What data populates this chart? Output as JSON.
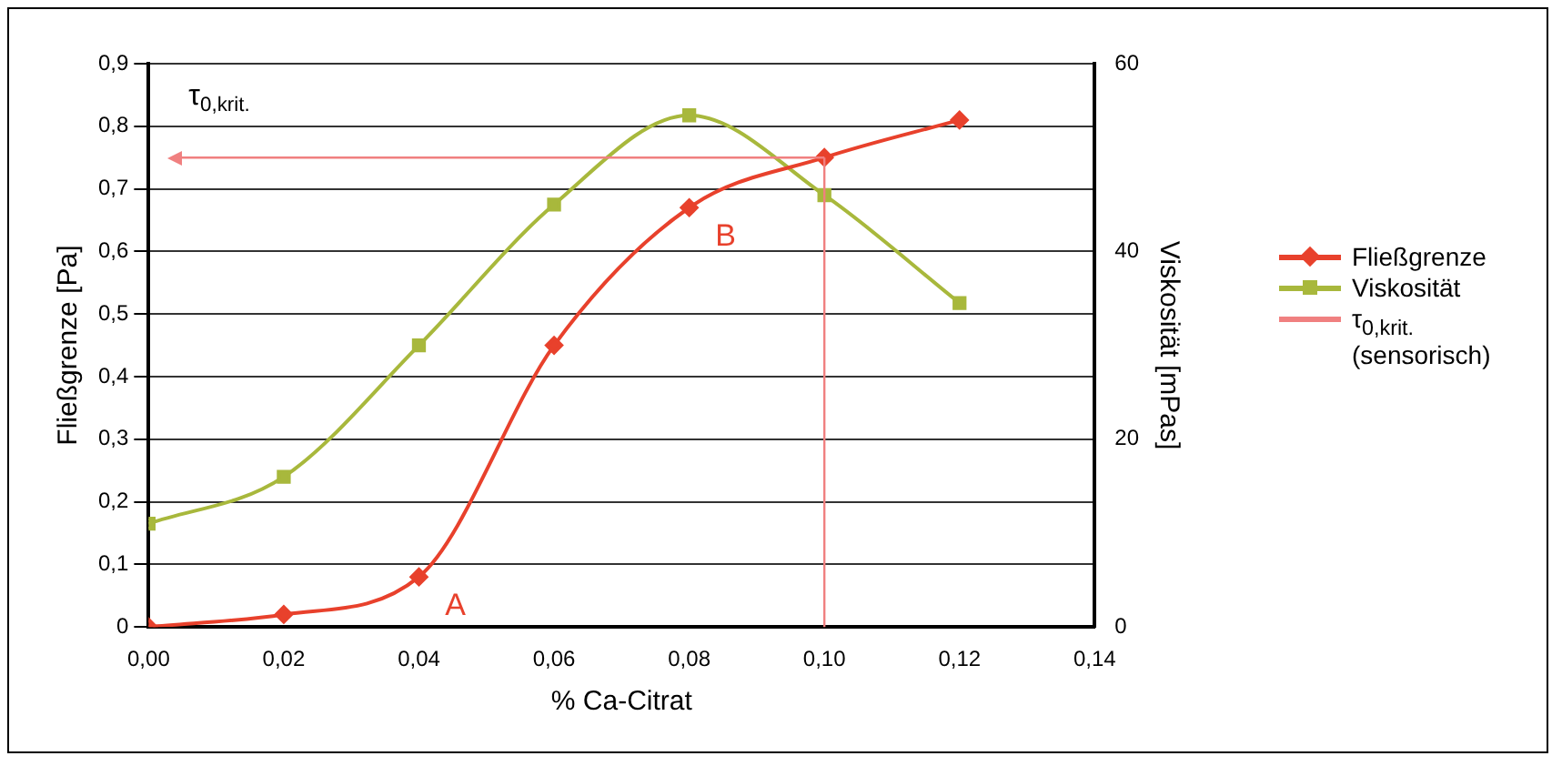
{
  "chart_data": {
    "type": "line",
    "xlabel": "% Ca-Citrat",
    "ylabel": "Fließgrenze [Pa]",
    "y2label": "Viskosität [mPas]",
    "x": [
      0,
      0.02,
      0.04,
      0.06,
      0.08,
      0.1,
      0.12
    ],
    "series": [
      {
        "name": "Fließgrenze",
        "color": "#e8412c",
        "values": [
          0,
          0.02,
          0.08,
          0.45,
          0.67,
          0.75,
          0.81
        ],
        "marker": "diamond"
      },
      {
        "name": "Viskosität",
        "color": "#a8b83c",
        "axis": "y2",
        "values": [
          11,
          16,
          30,
          45,
          54.5,
          46,
          34.5
        ],
        "marker": "square"
      }
    ],
    "ref_lines": [
      {
        "axis": "y",
        "value": 0.75,
        "label": "τ$_{0,krit.}$ (sensorisch)",
        "color": "#f08080"
      },
      {
        "axis": "x",
        "value": 0.1,
        "color": "#f08080"
      }
    ],
    "xlim": [
      0,
      0.14
    ],
    "xticks": [
      {
        "value": 0,
        "label": "0,00"
      },
      {
        "value": 0.02,
        "label": "0,02"
      },
      {
        "value": 0.04,
        "label": "0,04"
      },
      {
        "value": 0.06,
        "label": "0,06"
      },
      {
        "value": 0.08,
        "label": "0,08"
      },
      {
        "value": 0.1,
        "label": "0,10"
      },
      {
        "value": 0.12,
        "label": "0,12"
      },
      {
        "value": 0.14,
        "label": "0,14"
      }
    ],
    "ylim": [
      0,
      0.9
    ],
    "yticks": [
      0,
      {
        "value": 0.1,
        "label": "0,1"
      },
      {
        "value": 0.2,
        "label": "0,2"
      },
      {
        "value": 0.3,
        "label": "0,3"
      },
      {
        "value": 0.4,
        "label": "0,4"
      },
      {
        "value": 0.5,
        "label": "0,5"
      },
      {
        "value": 0.6,
        "label": "0,6"
      },
      {
        "value": 0.7,
        "label": "0,7"
      },
      {
        "value": 0.8,
        "label": "0,8"
      },
      {
        "value": 0.9,
        "label": "0,9"
      }
    ],
    "y2lim": [
      0,
      60
    ],
    "y2ticks": [
      0,
      20,
      40,
      60
    ],
    "annotations": [
      {
        "text": "A",
        "x": 0.04,
        "y": 0.08
      },
      {
        "text": "B",
        "x": 0.08,
        "y": 0.67
      },
      "τ$_{0,krit.}$"
    ],
    "grid": "y",
    "legend": "right",
    "line_style": "solid"
  }
}
